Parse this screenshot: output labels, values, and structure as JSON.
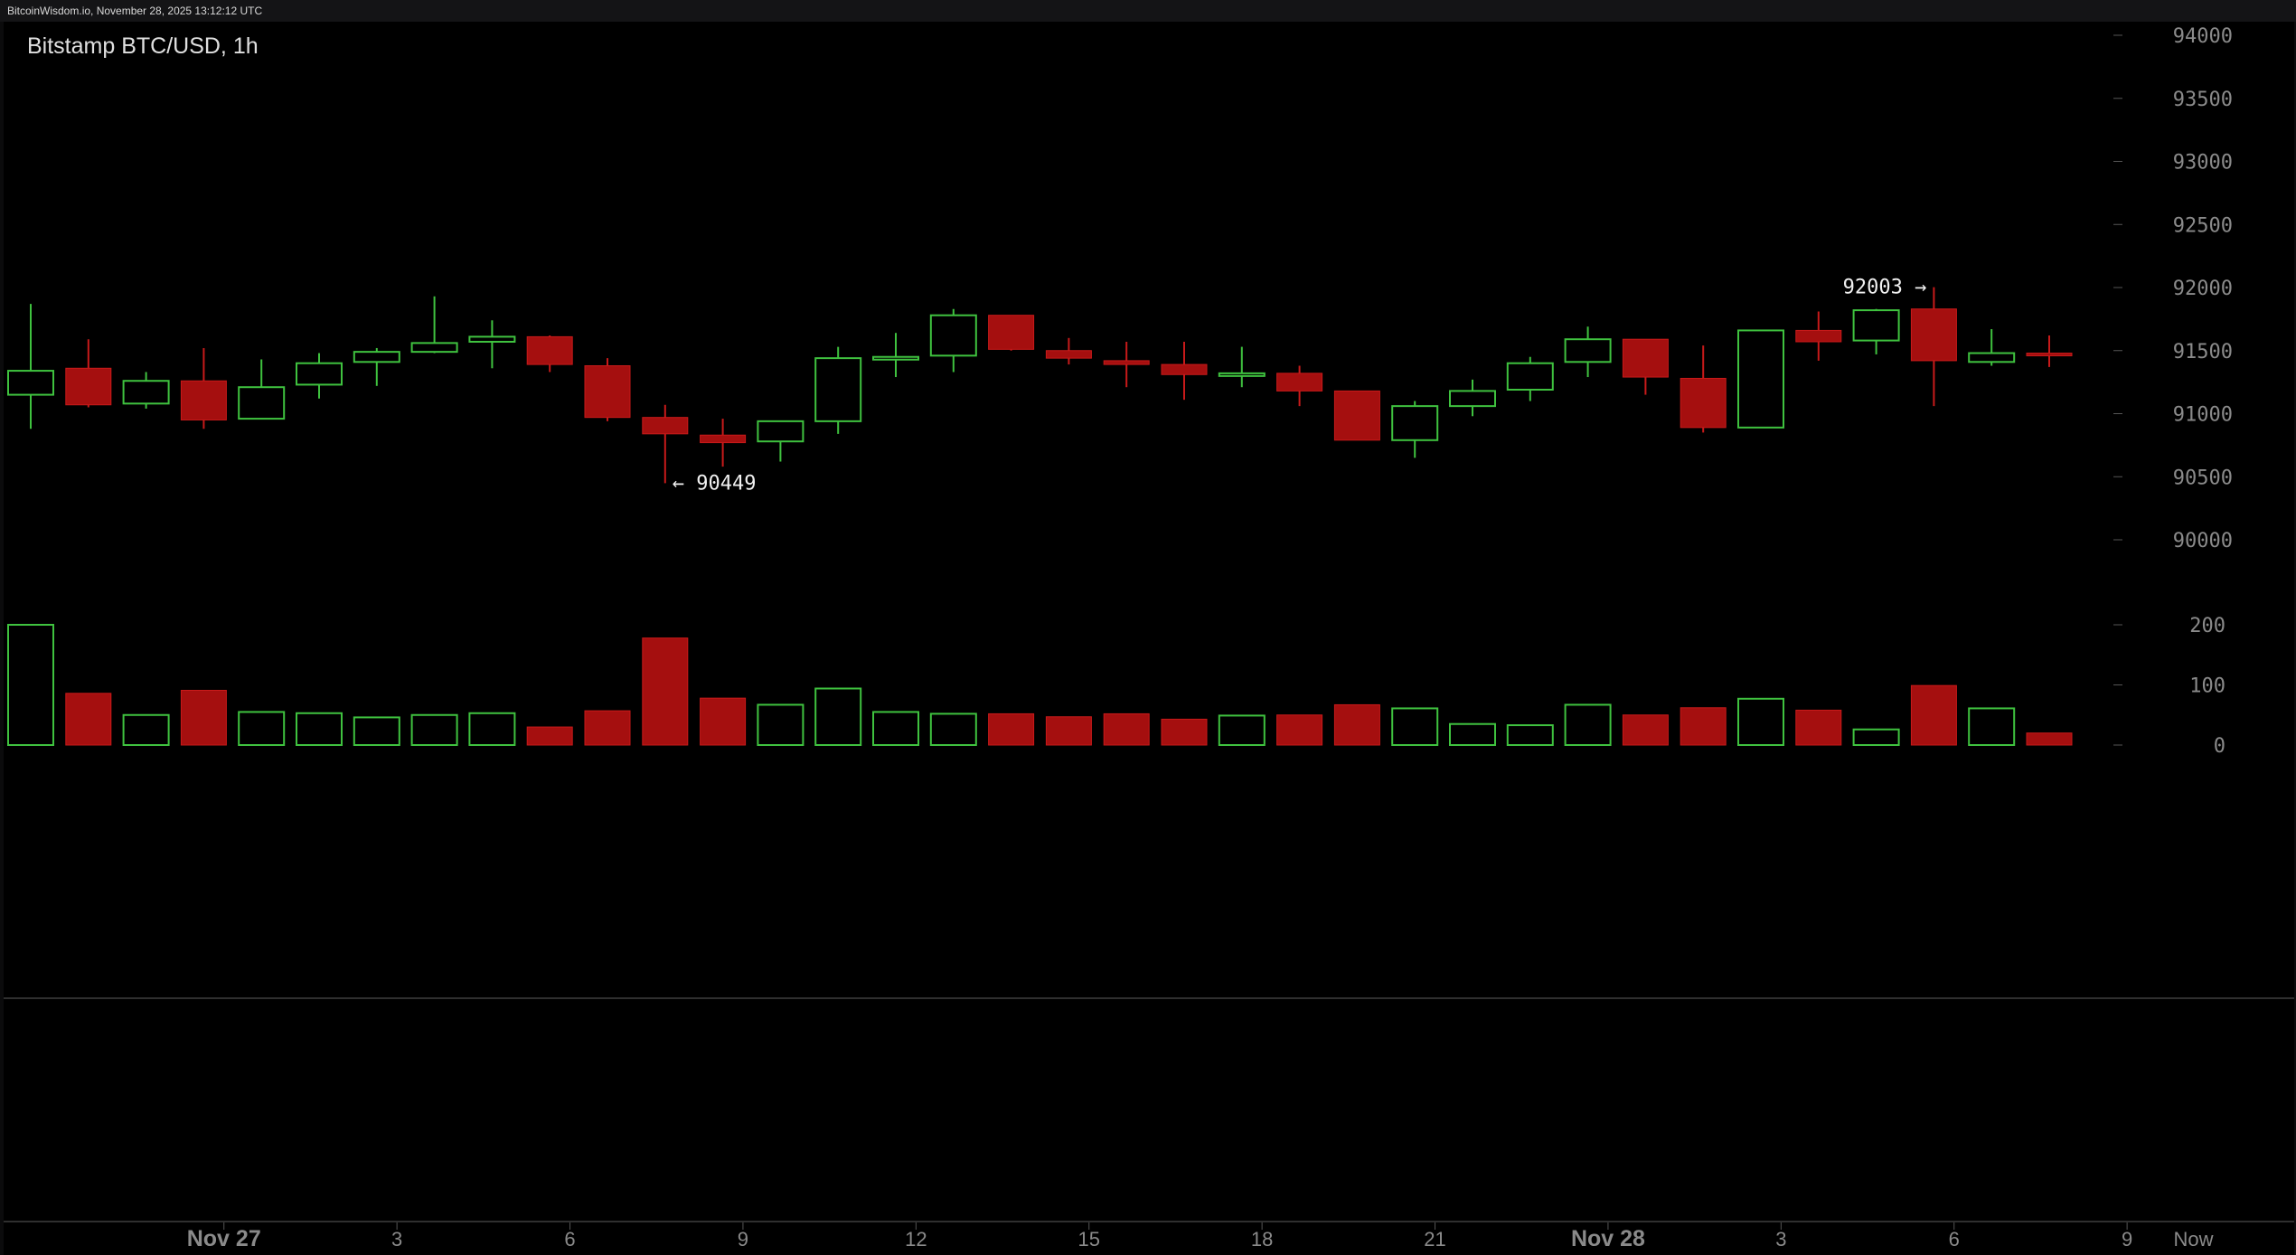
{
  "header": {
    "text": "BitcoinWisdom.io, November 28, 2025 13:12:12 UTC"
  },
  "chart_data": {
    "type": "candlestick",
    "title": "Bitstamp BTC/USD, 1h",
    "price_axis": {
      "ticks": [
        94000,
        93500,
        93000,
        92500,
        92000,
        91500,
        91000,
        90500,
        90000
      ],
      "range": [
        89700,
        94100
      ]
    },
    "volume_axis": {
      "ticks": [
        200,
        100,
        0
      ],
      "range": [
        0,
        200
      ]
    },
    "x_ticks": [
      {
        "label": "Nov 27",
        "index": 3.35,
        "big": true
      },
      {
        "label": "3",
        "index": 6.35
      },
      {
        "label": "6",
        "index": 9.35
      },
      {
        "label": "9",
        "index": 12.35
      },
      {
        "label": "12",
        "index": 15.35
      },
      {
        "label": "15",
        "index": 18.35
      },
      {
        "label": "18",
        "index": 21.35
      },
      {
        "label": "21",
        "index": 24.35
      },
      {
        "label": "Nov 28",
        "index": 27.35,
        "big": true
      },
      {
        "label": "3",
        "index": 30.35
      },
      {
        "label": "6",
        "index": 33.35
      },
      {
        "label": "9",
        "index": 36.35
      },
      {
        "label": "Now",
        "index": 37.5
      }
    ],
    "annotations": [
      {
        "text": "← 90449",
        "index": 11,
        "price": 90449,
        "side": "right"
      },
      {
        "text": "92003 →",
        "index": 33,
        "price": 92003,
        "side": "left"
      }
    ],
    "colors": {
      "up": "#3fc23f",
      "down": "#a50f0f",
      "down_edge": "#c81a1a"
    },
    "candles": [
      {
        "o": 91150,
        "h": 91870,
        "l": 90880,
        "c": 91340,
        "v": 200
      },
      {
        "o": 91360,
        "h": 91590,
        "l": 91050,
        "c": 91070,
        "v": 86
      },
      {
        "o": 91080,
        "h": 91330,
        "l": 91040,
        "c": 91260,
        "v": 50
      },
      {
        "o": 91260,
        "h": 91520,
        "l": 90880,
        "c": 90950,
        "v": 91
      },
      {
        "o": 90960,
        "h": 91430,
        "l": 90960,
        "c": 91210,
        "v": 55
      },
      {
        "o": 91230,
        "h": 91480,
        "l": 91120,
        "c": 91400,
        "v": 53
      },
      {
        "o": 91410,
        "h": 91520,
        "l": 91220,
        "c": 91490,
        "v": 46
      },
      {
        "o": 91490,
        "h": 91930,
        "l": 91480,
        "c": 91560,
        "v": 50
      },
      {
        "o": 91570,
        "h": 91740,
        "l": 91360,
        "c": 91610,
        "v": 53
      },
      {
        "o": 91610,
        "h": 91620,
        "l": 91330,
        "c": 91390,
        "v": 30
      },
      {
        "o": 91380,
        "h": 91440,
        "l": 90940,
        "c": 90970,
        "v": 57
      },
      {
        "o": 90970,
        "h": 91070,
        "l": 90449,
        "c": 90840,
        "v": 178
      },
      {
        "o": 90830,
        "h": 90960,
        "l": 90580,
        "c": 90770,
        "v": 78
      },
      {
        "o": 90780,
        "h": 90940,
        "l": 90620,
        "c": 90940,
        "v": 67
      },
      {
        "o": 90940,
        "h": 91530,
        "l": 90840,
        "c": 91440,
        "v": 94
      },
      {
        "o": 91440,
        "h": 91640,
        "l": 91290,
        "c": 91450,
        "v": 55
      },
      {
        "o": 91460,
        "h": 91830,
        "l": 91330,
        "c": 91780,
        "v": 52
      },
      {
        "o": 91780,
        "h": 91780,
        "l": 91500,
        "c": 91510,
        "v": 52
      },
      {
        "o": 91500,
        "h": 91600,
        "l": 91390,
        "c": 91440,
        "v": 47
      },
      {
        "o": 91420,
        "h": 91570,
        "l": 91210,
        "c": 91390,
        "v": 52
      },
      {
        "o": 91390,
        "h": 91570,
        "l": 91110,
        "c": 91310,
        "v": 43
      },
      {
        "o": 91310,
        "h": 91530,
        "l": 91210,
        "c": 91320,
        "v": 49
      },
      {
        "o": 91320,
        "h": 91380,
        "l": 91060,
        "c": 91180,
        "v": 50
      },
      {
        "o": 91180,
        "h": 91180,
        "l": 90790,
        "c": 90790,
        "v": 67
      },
      {
        "o": 90790,
        "h": 91100,
        "l": 90650,
        "c": 91060,
        "v": 61
      },
      {
        "o": 91060,
        "h": 91270,
        "l": 90980,
        "c": 91180,
        "v": 35
      },
      {
        "o": 91190,
        "h": 91450,
        "l": 91100,
        "c": 91400,
        "v": 33
      },
      {
        "o": 91410,
        "h": 91690,
        "l": 91290,
        "c": 91590,
        "v": 67
      },
      {
        "o": 91590,
        "h": 91590,
        "l": 91150,
        "c": 91290,
        "v": 50
      },
      {
        "o": 91280,
        "h": 91540,
        "l": 90850,
        "c": 90890,
        "v": 62
      },
      {
        "o": 90890,
        "h": 91660,
        "l": 90890,
        "c": 91660,
        "v": 77
      },
      {
        "o": 91660,
        "h": 91810,
        "l": 91420,
        "c": 91570,
        "v": 58
      },
      {
        "o": 91580,
        "h": 91830,
        "l": 91470,
        "c": 91820,
        "v": 26
      },
      {
        "o": 91830,
        "h": 92003,
        "l": 91060,
        "c": 91420,
        "v": 99
      },
      {
        "o": 91410,
        "h": 91670,
        "l": 91380,
        "c": 91480,
        "v": 61
      },
      {
        "o": 91480,
        "h": 91620,
        "l": 91370,
        "c": 91460,
        "v": 20
      }
    ]
  }
}
